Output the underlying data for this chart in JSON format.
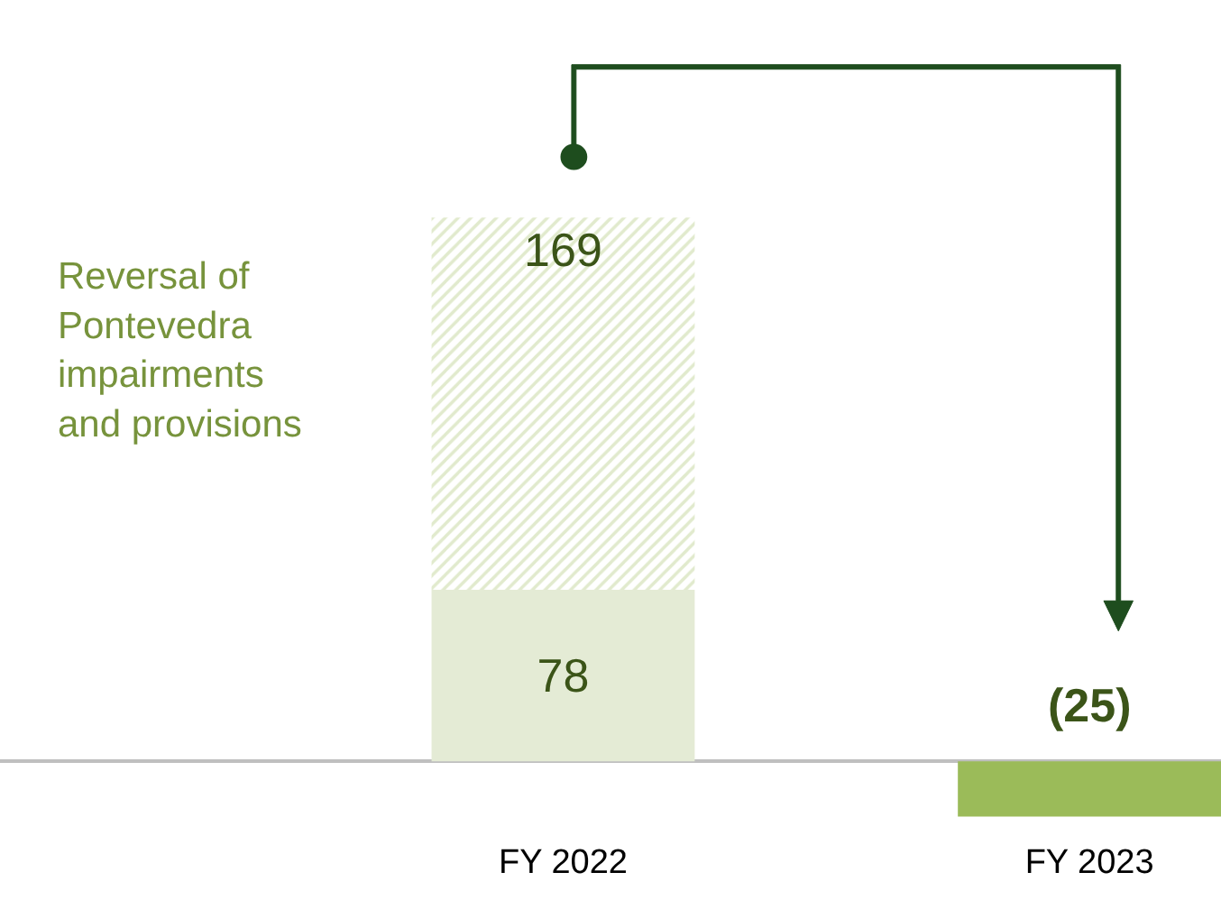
{
  "chart_data": {
    "type": "bar",
    "stacked": true,
    "categories": [
      "FY 2022",
      "FY 2023"
    ],
    "series": [
      {
        "colors": [
          "#e4ebd5",
          "#9bbb59"
        ],
        "values": [
          78,
          -25
        ],
        "value_labels": [
          "78",
          "(25)"
        ]
      },
      {
        "name": "Reversal of\nPontevedra\nimpairments\nand provisions",
        "color": "#c3d69b",
        "values": [
          169,
          null
        ],
        "value_labels": [
          "169",
          null
        ]
      }
    ],
    "tick_labels": "x",
    "legend": false
  }
}
